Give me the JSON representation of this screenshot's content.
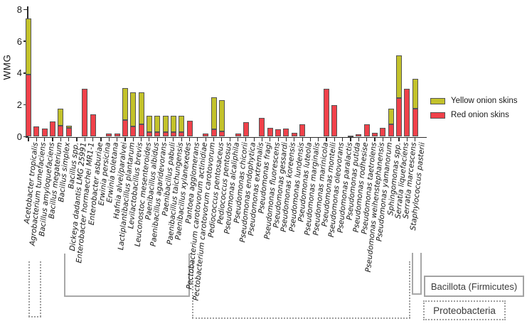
{
  "chart_data": {
    "type": "bar",
    "stacked": true,
    "title": "",
    "ylabel": "WMG",
    "xlabel": "",
    "ylim": [
      0,
      8
    ],
    "yticks": [
      0,
      2,
      4,
      6,
      8
    ],
    "grid": false,
    "legend_position": "right",
    "categories": [
      "Acetobacter tropicalis",
      "Agrobacterium tumefaciens",
      "Bacillus amyloquefaciens",
      "Bacillus megaterium",
      "Bacillus simplex",
      "Bacillus spp.",
      "Dickeya dadantis LMG 25991",
      "Enterobacter hormaechei MR1-1",
      "Enterobacter asburiae",
      "Erwinia persicina",
      "Erwinia toletana",
      "Hafnia alvei/paralvei",
      "Lactiplantibacillus plantarum",
      "Levilactobacillus brevis",
      "Leuconostoc mesenteroides",
      "Paenibacillus albidus",
      "Paenibacillus agaridevorans",
      "Paenibacillus pabuli",
      "Paenibacillus taichungensis",
      "Paenibacillus xylanexedes",
      "Pantoea agglomerans",
      "Pectobacterium carotovorum actinidiae",
      "Pectobacterium carotovorum carotovorum",
      "Pediococcus pentosaceus",
      "Pediococcus pentosus",
      "Pseudomonas alcaliphila",
      "Pseudomonas chicorii",
      "Pseudomonas endophytica",
      "Pseudomonas extremalis",
      "Pseudomonas fragi",
      "Pseudomonas fluorescens",
      "Pseudomonas gessardi",
      "Pseudomonas koreensis",
      "Pseudomonas lundensis",
      "Pseudomonas luteola",
      "Pseudomonas marginalis",
      "Pseudomonas marinicola",
      "Pseudomonas monteili",
      "Pseudomonas oleovorans",
      "Pseudomonas paralactis",
      "Pseudomonas putida",
      "Pseudomonas rodhesise",
      "Pseudomonas taetrolens",
      "Pseudomonas weihenstephanensis",
      "Pseudomonas yamanorum",
      "Sphingomonas spp.",
      "Serratia liquefaciens",
      "Serratia marcescens",
      "Staphylococcus pasterii"
    ],
    "series": [
      {
        "name": "Red onion skins",
        "color": "#f0414a",
        "values": [
          3.9,
          0.65,
          0.5,
          0.95,
          0.7,
          0.55,
          0,
          3.0,
          1.4,
          0,
          0.2,
          0.2,
          1.05,
          0.65,
          0.8,
          0.3,
          0.3,
          0.3,
          0.3,
          0.3,
          1.0,
          0,
          0.2,
          0.45,
          0.35,
          0,
          0.2,
          0.9,
          0,
          1.2,
          0.55,
          0.45,
          0.5,
          0.25,
          0.8,
          0,
          0,
          3.0,
          2.0,
          0,
          0.05,
          0.15,
          0.8,
          0.25,
          0.55,
          0.8,
          2.45,
          3.0,
          1.75
        ]
      },
      {
        "name": "Yellow onion skins",
        "color": "#c3c22b",
        "values": [
          3.55,
          0,
          0,
          0,
          1.05,
          0.15,
          0,
          0,
          0,
          0,
          0,
          0,
          2.0,
          2.15,
          2.0,
          1.0,
          1.0,
          1.0,
          1.0,
          1.0,
          0,
          0,
          0,
          2.05,
          1.95,
          0,
          0,
          0,
          0,
          0,
          0,
          0,
          0,
          0,
          0,
          0,
          0,
          0,
          0,
          0,
          0,
          0,
          0,
          0,
          0,
          0.95,
          2.65,
          0,
          1.9
        ]
      }
    ],
    "legend": [
      {
        "label": "Yellow onion skins",
        "color": "#c3c22b"
      },
      {
        "label": "Red onion skins",
        "color": "#f0414a"
      }
    ]
  },
  "taxon_groups": [
    {
      "label": "Bacillota (Firmicutes)",
      "border": "solid"
    },
    {
      "label": "Proteobacteria",
      "border": "dotted"
    }
  ]
}
